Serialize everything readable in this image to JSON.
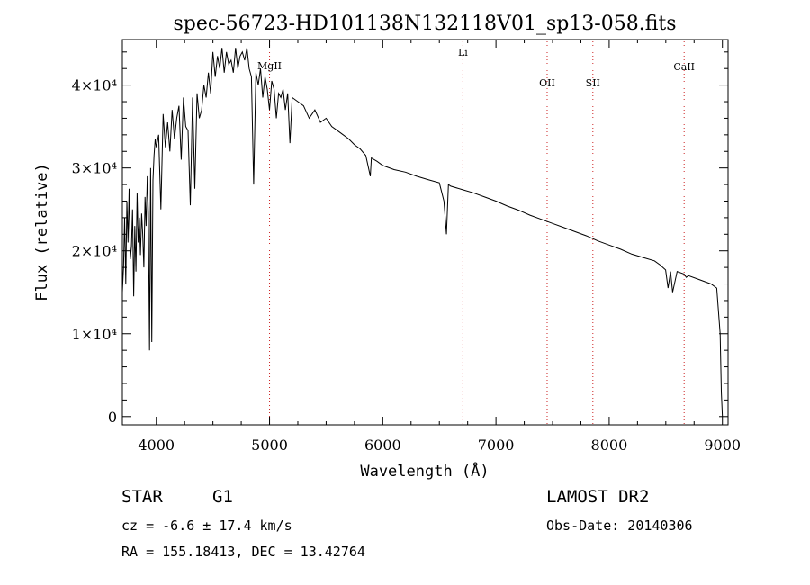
{
  "chart_data": {
    "type": "line",
    "title": "spec-56723-HD101138N132118V01_sp13-058.fits",
    "xlabel": "Wavelength (Å)",
    "ylabel": "Flux (relative)",
    "xlim": [
      3700,
      9050
    ],
    "ylim": [
      -1000,
      45500
    ],
    "x_ticks": [
      4000,
      5000,
      6000,
      7000,
      8000,
      9000
    ],
    "y_ticks": [
      {
        "value": 0,
        "label": "0"
      },
      {
        "value": 10000,
        "label": "1×10⁴"
      },
      {
        "value": 20000,
        "label": "2×10⁴"
      },
      {
        "value": 30000,
        "label": "3×10⁴"
      },
      {
        "value": 40000,
        "label": "4×10⁴"
      }
    ],
    "grid": false,
    "line_color": "#000000",
    "marker_color": "#cc2222",
    "series": [
      {
        "x": [
          3700,
          3710,
          3720,
          3730,
          3740,
          3750,
          3760,
          3770,
          3780,
          3790,
          3800,
          3810,
          3820,
          3830,
          3840,
          3850,
          3860,
          3870,
          3880,
          3890,
          3900,
          3910,
          3920,
          3930,
          3940,
          3950,
          3960,
          3970,
          3980,
          3990,
          4000,
          4020,
          4040,
          4060,
          4080,
          4100,
          4120,
          4140,
          4160,
          4180,
          4200,
          4220,
          4240,
          4260,
          4280,
          4300,
          4320,
          4340,
          4360,
          4380,
          4400,
          4420,
          4440,
          4460,
          4480,
          4500,
          4520,
          4540,
          4560,
          4580,
          4600,
          4620,
          4640,
          4660,
          4680,
          4700,
          4720,
          4740,
          4760,
          4780,
          4800,
          4820,
          4840,
          4860,
          4880,
          4900,
          4920,
          4940,
          4960,
          4980,
          5000,
          5020,
          5040,
          5060,
          5080,
          5100,
          5120,
          5140,
          5160,
          5180,
          5200,
          5250,
          5300,
          5350,
          5400,
          5450,
          5500,
          5550,
          5600,
          5650,
          5700,
          5750,
          5800,
          5850,
          5890,
          5900,
          5950,
          6000,
          6100,
          6200,
          6300,
          6400,
          6500,
          6540,
          6563,
          6580,
          6600,
          6700,
          6800,
          6900,
          7000,
          7100,
          7200,
          7300,
          7400,
          7500,
          7600,
          7700,
          7800,
          7900,
          8000,
          8100,
          8200,
          8300,
          8400,
          8450,
          8498,
          8520,
          8542,
          8560,
          8600,
          8662,
          8680,
          8700,
          8800,
          8900,
          8950,
          8980,
          8990,
          9000
        ],
        "y": [
          15000,
          18000,
          24000,
          16000,
          26000,
          21000,
          27500,
          19000,
          20500,
          25000,
          14500,
          23000,
          17500,
          27000,
          21000,
          24000,
          19500,
          24500,
          22000,
          18000,
          26500,
          23000,
          29000,
          24500,
          8000,
          30000,
          9000,
          28500,
          31500,
          33500,
          32500,
          34000,
          25000,
          36500,
          32500,
          35500,
          32000,
          37000,
          33500,
          36000,
          37500,
          31000,
          38500,
          35000,
          34500,
          25500,
          38500,
          27500,
          39000,
          36000,
          37000,
          40000,
          38500,
          41500,
          39000,
          44000,
          41000,
          43500,
          42000,
          44500,
          41500,
          44000,
          42500,
          43000,
          41500,
          44500,
          42000,
          43500,
          44000,
          43000,
          44500,
          42000,
          41000,
          28000,
          41500,
          40000,
          42000,
          38500,
          41000,
          39500,
          37000,
          40500,
          39500,
          36000,
          39000,
          38500,
          39500,
          37000,
          39000,
          33000,
          38500,
          38000,
          37500,
          36000,
          37000,
          35500,
          36000,
          35000,
          34500,
          34000,
          33500,
          32800,
          32300,
          31500,
          29000,
          31200,
          30800,
          30300,
          29800,
          29500,
          29000,
          28600,
          28200,
          26000,
          22000,
          28000,
          27800,
          27400,
          27000,
          26500,
          26000,
          25400,
          24900,
          24300,
          23800,
          23300,
          22800,
          22300,
          21800,
          21200,
          20700,
          20200,
          19600,
          19200,
          18800,
          18300,
          17700,
          15500,
          17500,
          15000,
          17500,
          17200,
          16800,
          17000,
          16500,
          16000,
          15500,
          10000,
          3000,
          0
        ]
      }
    ],
    "line_markers": [
      {
        "label": "MgII",
        "x": 5000
      },
      {
        "label": "Li",
        "x": 6708
      },
      {
        "label": "OII",
        "x": 7452
      },
      {
        "label": "SII",
        "x": 7856
      },
      {
        "label": "CaII",
        "x": 8662
      }
    ]
  },
  "info": {
    "object_class": "STAR",
    "subclass": "G1",
    "redshift": "cz = -6.6 ± 17.4 km/s",
    "coords": "RA = 155.18413, DEC =  13.42764",
    "survey": "LAMOST DR2",
    "obs_date": "Obs-Date: 20140306"
  }
}
